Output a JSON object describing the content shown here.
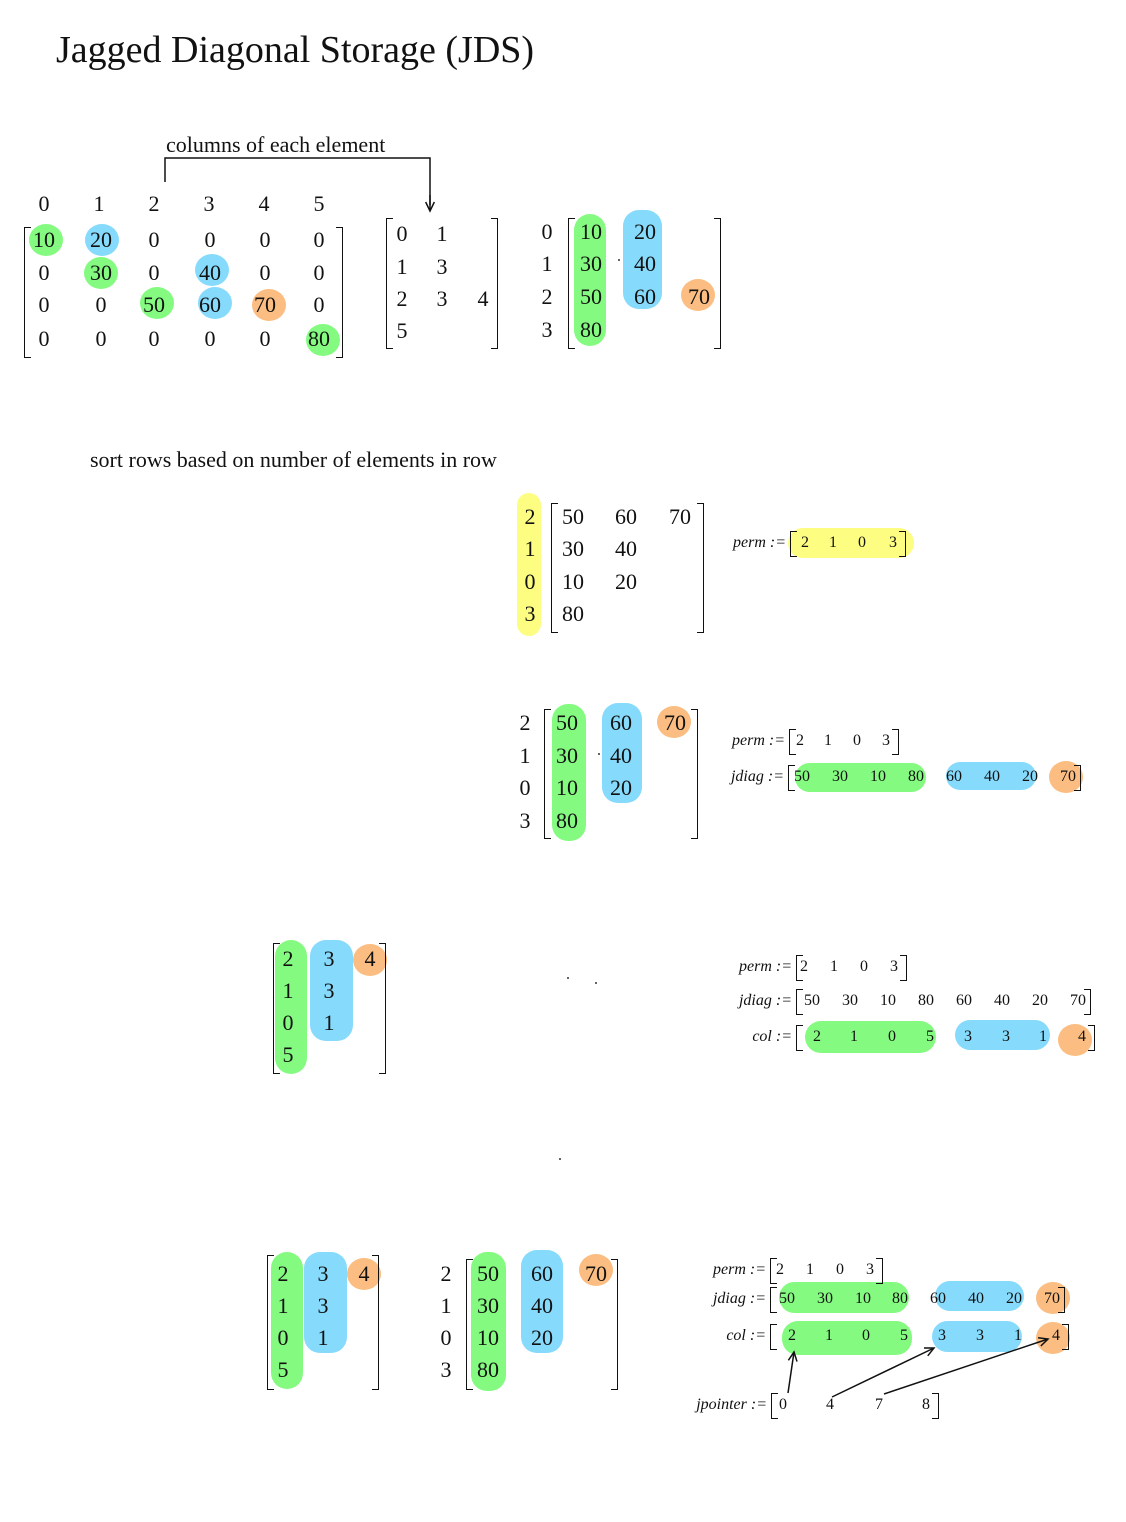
{
  "title": "Jagged Diagonal Storage (JDS)",
  "annotation_columns": "columns of each element",
  "annotation_sort": "sort rows based on number of elements in row",
  "colors": {
    "diag1": "#7dfb79",
    "diag2": "#7fd8fb",
    "diag3": "#fbb97a",
    "perm": "#fdfd7b"
  },
  "step1": {
    "column_header": [
      "0",
      "1",
      "2",
      "3",
      "4",
      "5"
    ],
    "dense_matrix": [
      [
        "10",
        "20",
        "0",
        "0",
        "0",
        "0"
      ],
      [
        "0",
        "30",
        "0",
        "40",
        "0",
        "0"
      ],
      [
        "0",
        "0",
        "50",
        "60",
        "70",
        "0"
      ],
      [
        "0",
        "0",
        "0",
        "0",
        "0",
        "80"
      ]
    ],
    "column_indices": [
      [
        "0",
        "1"
      ],
      [
        "1",
        "3"
      ],
      [
        "2",
        "3",
        "4"
      ],
      [
        "5"
      ]
    ],
    "row_labels": [
      "0",
      "1",
      "2",
      "3"
    ],
    "values": [
      [
        "10",
        "20"
      ],
      [
        "30",
        "40"
      ],
      [
        "50",
        "60",
        "70"
      ],
      [
        "80"
      ]
    ]
  },
  "step2": {
    "row_labels": [
      "2",
      "1",
      "0",
      "3"
    ],
    "values": [
      [
        "50",
        "60",
        "70"
      ],
      [
        "30",
        "40"
      ],
      [
        "10",
        "20"
      ],
      [
        "80"
      ]
    ],
    "perm": {
      "label": "perm :=",
      "values": [
        "2",
        "1",
        "0",
        "3"
      ]
    }
  },
  "step3": {
    "row_labels": [
      "2",
      "1",
      "0",
      "3"
    ],
    "values": [
      [
        "50",
        "60",
        "70"
      ],
      [
        "30",
        "40"
      ],
      [
        "10",
        "20"
      ],
      [
        "80"
      ]
    ],
    "perm": {
      "label": "perm :=",
      "values": [
        "2",
        "1",
        "0",
        "3"
      ]
    },
    "jdiag": {
      "label": "jdiag :=",
      "values": [
        "50",
        "30",
        "10",
        "80",
        "60",
        "40",
        "20",
        "70"
      ]
    }
  },
  "step4": {
    "column_indices": [
      [
        "2",
        "3",
        "4"
      ],
      [
        "1",
        "3"
      ],
      [
        "0",
        "1"
      ],
      [
        "5"
      ]
    ],
    "perm": {
      "label": "perm :=",
      "values": [
        "2",
        "1",
        "0",
        "3"
      ]
    },
    "jdiag": {
      "label": "jdiag :=",
      "values": [
        "50",
        "30",
        "10",
        "80",
        "60",
        "40",
        "20",
        "70"
      ]
    },
    "col": {
      "label": "col :=",
      "values": [
        "2",
        "1",
        "0",
        "5",
        "3",
        "3",
        "1",
        "4"
      ]
    }
  },
  "step5": {
    "column_indices": [
      [
        "2",
        "3",
        "4"
      ],
      [
        "1",
        "3"
      ],
      [
        "0",
        "1"
      ],
      [
        "5"
      ]
    ],
    "row_labels": [
      "2",
      "1",
      "0",
      "3"
    ],
    "values": [
      [
        "50",
        "60",
        "70"
      ],
      [
        "30",
        "40"
      ],
      [
        "10",
        "20"
      ],
      [
        "80"
      ]
    ],
    "perm": {
      "label": "perm :=",
      "values": [
        "2",
        "1",
        "0",
        "3"
      ]
    },
    "jdiag": {
      "label": "jdiag :=",
      "values": [
        "50",
        "30",
        "10",
        "80",
        "60",
        "40",
        "20",
        "70"
      ]
    },
    "col": {
      "label": "col :=",
      "values": [
        "2",
        "1",
        "0",
        "5",
        "3",
        "3",
        "1",
        "4"
      ]
    },
    "jpointer": {
      "label": "jpointer :=",
      "values": [
        "0",
        "4",
        "7",
        "8"
      ]
    }
  }
}
